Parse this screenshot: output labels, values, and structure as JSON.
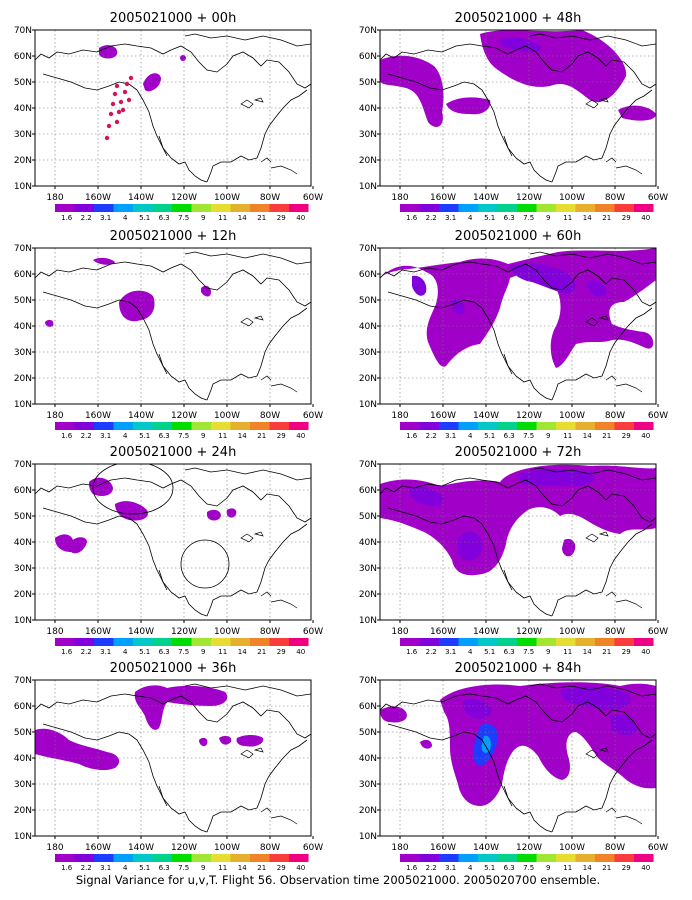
{
  "caption": "Signal Variance for u,v,T. Flight 56. Observation time 2005021000. 2005020700 ensemble.",
  "axes": {
    "lat_labels": [
      "70N",
      "60N",
      "50N",
      "40N",
      "30N",
      "20N",
      "10N"
    ],
    "lon_labels": [
      "180",
      "160W",
      "140W",
      "120W",
      "100W",
      "80W",
      "60W"
    ]
  },
  "colorbar": {
    "labels": [
      "1.6",
      "2.2",
      "3.1",
      "4",
      "5.1",
      "6.3",
      "7.5",
      "9",
      "11",
      "14",
      "21",
      "29",
      "40"
    ],
    "colors": [
      "#a000c8",
      "#8200dc",
      "#1e3cff",
      "#00a0ff",
      "#00c8c8",
      "#00d28c",
      "#00dc00",
      "#a0e632",
      "#e6dc32",
      "#e6af2d",
      "#f08228",
      "#fa3c3c",
      "#f00082"
    ]
  },
  "panels": [
    {
      "title": "2005021000 + 00h",
      "lead_hours": 0
    },
    {
      "title": "2005021000 + 48h",
      "lead_hours": 48
    },
    {
      "title": "2005021000 + 12h",
      "lead_hours": 12
    },
    {
      "title": "2005021000 + 60h",
      "lead_hours": 60
    },
    {
      "title": "2005021000 + 24h",
      "lead_hours": 24
    },
    {
      "title": "2005021000 + 72h",
      "lead_hours": 72
    },
    {
      "title": "2005021000 + 36h",
      "lead_hours": 36
    },
    {
      "title": "2005021000 + 84h",
      "lead_hours": 84
    }
  ]
}
